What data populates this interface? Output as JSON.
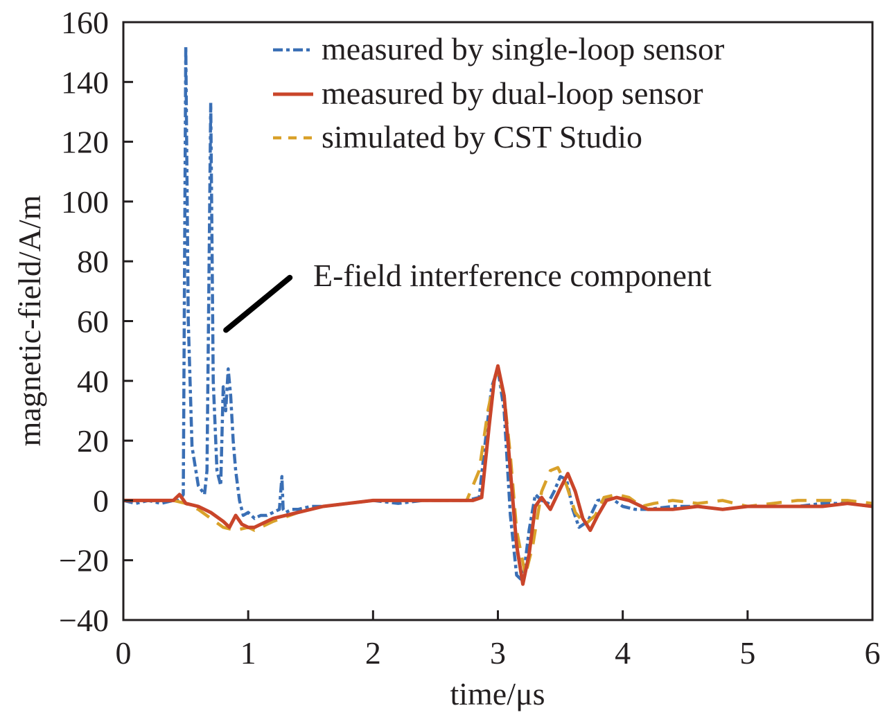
{
  "chart_data": {
    "type": "line",
    "title": "",
    "xlabel": "time/μs",
    "ylabel": "magnetic-field/A/m",
    "xlim": [
      0,
      6
    ],
    "ylim": [
      -40,
      160
    ],
    "xticks": [
      0,
      1,
      2,
      3,
      4,
      5,
      6
    ],
    "xtick_labels": [
      "0",
      "1",
      "2",
      "3",
      "4",
      "5",
      "6"
    ],
    "yticks": [
      -40,
      -20,
      0,
      20,
      40,
      60,
      80,
      100,
      120,
      140,
      160
    ],
    "ytick_labels": [
      "−40",
      "−20",
      "0",
      "20",
      "40",
      "60",
      "80",
      "100",
      "120",
      "140",
      "160"
    ],
    "grid": false,
    "legend_position": "top-right",
    "annotation": {
      "text": "E-field interference component",
      "points_to": {
        "x": 0.8,
        "y": 57
      },
      "text_at": {
        "x": 1.5,
        "y": 75
      }
    },
    "series": [
      {
        "name": "measured by single-loop sensor",
        "color": "#3a6fb5",
        "style": "dashdot",
        "x": [
          0,
          0.1,
          0.2,
          0.3,
          0.4,
          0.45,
          0.48,
          0.5,
          0.52,
          0.55,
          0.6,
          0.65,
          0.67,
          0.7,
          0.72,
          0.75,
          0.78,
          0.8,
          0.82,
          0.84,
          0.86,
          0.88,
          0.9,
          0.93,
          0.96,
          1.0,
          1.05,
          1.1,
          1.15,
          1.2,
          1.25,
          1.27,
          1.28,
          1.3,
          1.35,
          1.4,
          1.5,
          1.6,
          1.8,
          2.0,
          2.2,
          2.4,
          2.6,
          2.75,
          2.85,
          2.9,
          2.95,
          3.0,
          3.05,
          3.1,
          3.15,
          3.2,
          3.25,
          3.3,
          3.35,
          3.4,
          3.45,
          3.5,
          3.55,
          3.6,
          3.65,
          3.72,
          3.8,
          3.9,
          4.0,
          4.1,
          4.2,
          4.4,
          4.6,
          4.8,
          5.0,
          5.2,
          5.4,
          5.6,
          5.8,
          6.0
        ],
        "y": [
          0,
          -1,
          0,
          -1,
          0,
          0,
          2,
          152,
          60,
          18,
          5,
          2,
          10,
          133,
          40,
          10,
          5,
          38,
          30,
          44,
          35,
          20,
          10,
          0,
          -5,
          -4,
          -6,
          -5,
          -5,
          -4,
          -3,
          8,
          -3,
          -4,
          -3,
          -3,
          -2,
          -2,
          -1,
          0,
          -1,
          0,
          0,
          0,
          1,
          20,
          38,
          44,
          30,
          -5,
          -25,
          -27,
          -10,
          2,
          0,
          -1,
          3,
          8,
          7,
          -3,
          -9,
          -7,
          0,
          1,
          -2,
          -3,
          -3,
          -2,
          -2,
          -3,
          -2,
          -2,
          -2,
          -1,
          -1,
          -2
        ]
      },
      {
        "name": "measured by dual-loop sensor",
        "color": "#c9452a",
        "style": "solid",
        "x": [
          0,
          0.2,
          0.4,
          0.45,
          0.5,
          0.6,
          0.7,
          0.8,
          0.85,
          0.9,
          0.95,
          1.0,
          1.05,
          1.1,
          1.2,
          1.4,
          1.6,
          1.8,
          2.0,
          2.2,
          2.4,
          2.6,
          2.8,
          2.87,
          2.93,
          2.97,
          3.0,
          3.05,
          3.1,
          3.15,
          3.2,
          3.25,
          3.3,
          3.35,
          3.42,
          3.5,
          3.56,
          3.62,
          3.68,
          3.74,
          3.8,
          3.87,
          3.95,
          4.05,
          4.2,
          4.4,
          4.6,
          4.8,
          5.0,
          5.2,
          5.4,
          5.6,
          5.8,
          6.0
        ],
        "y": [
          0,
          0,
          0,
          2,
          -1,
          -2,
          -4,
          -7,
          -9,
          -5,
          -8,
          -9,
          -9,
          -8,
          -6,
          -4,
          -2,
          -1,
          0,
          0,
          0,
          0,
          0,
          1,
          25,
          40,
          45,
          35,
          10,
          -15,
          -28,
          -18,
          -2,
          1,
          -3,
          4,
          9,
          3,
          -6,
          -10,
          -5,
          0,
          1,
          0,
          -3,
          -3,
          -2,
          -3,
          -2,
          -2,
          -2,
          -2,
          -1,
          -2
        ]
      },
      {
        "name": "simulated by CST Studio",
        "color": "#d9a12a",
        "style": "dashed",
        "x": [
          0,
          0.2,
          0.4,
          0.5,
          0.6,
          0.7,
          0.8,
          0.9,
          1.0,
          1.05,
          1.1,
          1.2,
          1.4,
          1.6,
          1.8,
          2.0,
          2.2,
          2.4,
          2.6,
          2.75,
          2.85,
          2.92,
          2.98,
          3.0,
          3.05,
          3.1,
          3.15,
          3.22,
          3.28,
          3.35,
          3.42,
          3.48,
          3.55,
          3.62,
          3.7,
          3.78,
          3.85,
          3.95,
          4.05,
          4.15,
          4.25,
          4.4,
          4.6,
          4.8,
          5.0,
          5.2,
          5.4,
          5.6,
          5.8,
          6.0
        ],
        "y": [
          0,
          0,
          0,
          -1,
          -3,
          -6,
          -9,
          -10,
          -9,
          -10,
          -9,
          -7,
          -4,
          -2,
          -1,
          0,
          0,
          0,
          0,
          0,
          10,
          30,
          42,
          42,
          35,
          15,
          -10,
          -25,
          -15,
          3,
          10,
          11,
          5,
          -4,
          -8,
          -5,
          1,
          2,
          1,
          -2,
          -1,
          0,
          -1,
          0,
          -2,
          -1,
          0,
          0,
          0,
          -1
        ]
      }
    ]
  }
}
